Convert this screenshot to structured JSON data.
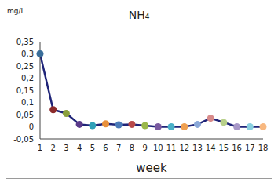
{
  "chart_data": {
    "type": "line",
    "title": "NH₄",
    "ylabel": "mg/L",
    "xlabel": "week",
    "categories": [
      "1",
      "2",
      "3",
      "4",
      "5",
      "6",
      "7",
      "8",
      "9",
      "10",
      "11",
      "12",
      "13",
      "14",
      "15",
      "16",
      "17",
      "18"
    ],
    "values": [
      0.3,
      0.07,
      0.055,
      0.01,
      0.005,
      0.012,
      0.008,
      0.01,
      0.005,
      0.0,
      0.0,
      0.0,
      0.01,
      0.035,
      0.018,
      0.0,
      0.0,
      0.0
    ],
    "color": "#1f2478",
    "colors": [
      "#3a6e9a",
      "#8b2a2a",
      "#8aa03c",
      "#5a3a8a",
      "#2fa0b8",
      "#e8903a",
      "#4a7ab8",
      "#b84a4a",
      "#9ab84a",
      "#7a5aa0",
      "#4ab0c8",
      "#f0a050",
      "#8aa8d8",
      "#d88a8a",
      "#b8d08a",
      "#a898c8",
      "#8ad0e0",
      "#f8b880"
    ],
    "marker": "circle",
    "ylim": [
      -0.05,
      0.35
    ],
    "yticks": [
      {
        "value": -0.05,
        "label": "-0,05"
      },
      0,
      {
        "value": 0.05,
        "label": "0,05"
      },
      {
        "value": 0.1,
        "label": "0,1"
      },
      {
        "value": 0.15,
        "label": "0,15"
      },
      {
        "value": 0.2,
        "label": "0,2"
      },
      {
        "value": 0.25,
        "label": "0,25"
      },
      {
        "value": 0.3,
        "label": "0,3"
      },
      {
        "value": 0.35,
        "label": "0,35"
      }
    ],
    "grid": false
  }
}
